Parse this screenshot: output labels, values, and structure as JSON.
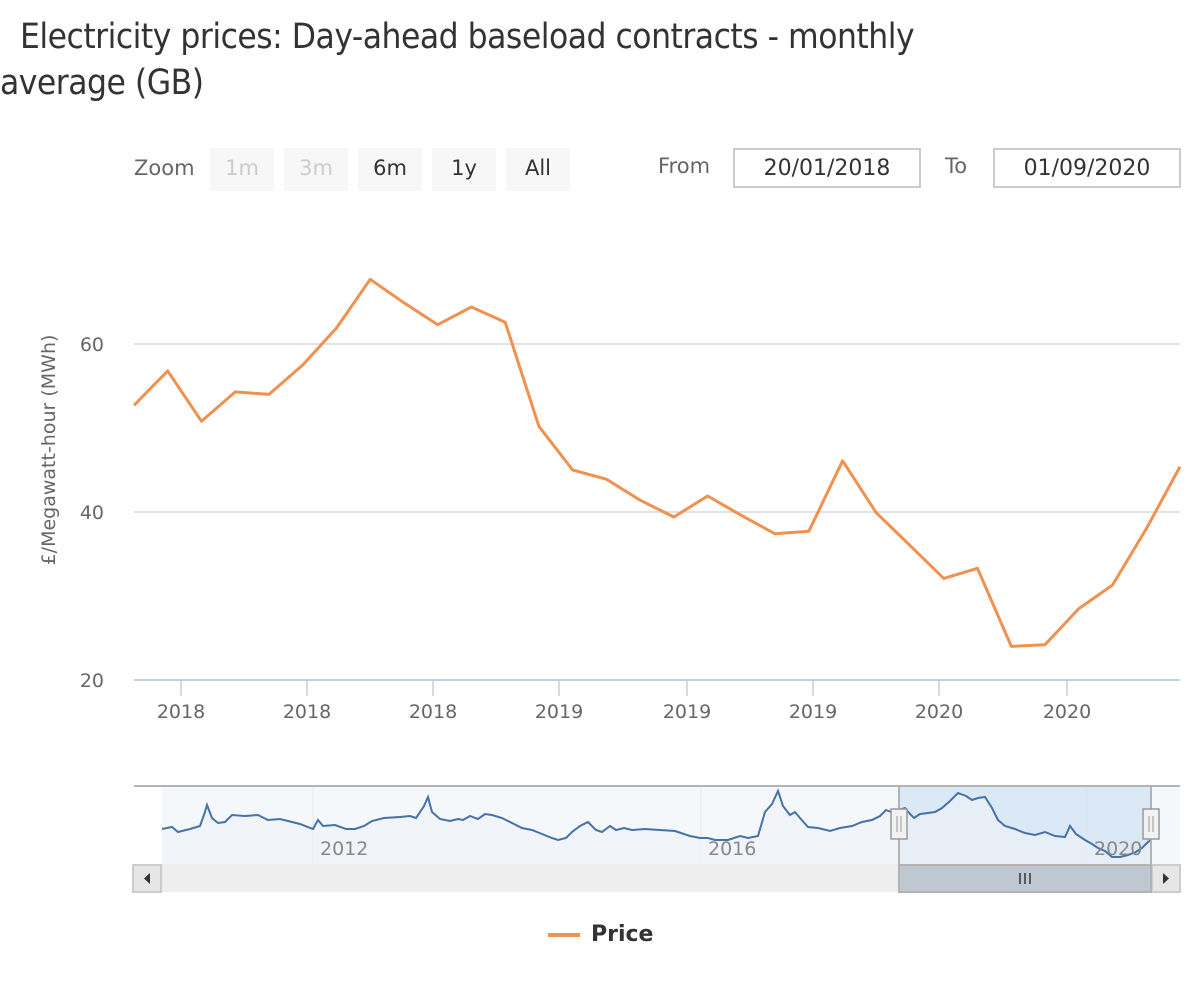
{
  "title": {
    "line1": "Electricity prices: Day-ahead baseload contracts - monthly",
    "line2": "average (GB)"
  },
  "range_selector": {
    "zoom_label": "Zoom",
    "buttons": [
      {
        "label": "1m",
        "enabled": false
      },
      {
        "label": "3m",
        "enabled": false
      },
      {
        "label": "6m",
        "enabled": true
      },
      {
        "label": "1y",
        "enabled": true
      },
      {
        "label": "All",
        "enabled": true
      }
    ],
    "from_label": "From",
    "from_value": "20/01/2018",
    "to_label": "To",
    "to_value": "01/09/2020"
  },
  "colors": {
    "series": "#f0914f",
    "navigator_series": "#4572a7",
    "navigator_mask": "#d6e5f5",
    "grid": "#d8d8d8",
    "axis": "#c0d0e0"
  },
  "legend": {
    "items": [
      {
        "label": "Price",
        "icon": "line-swatch-icon"
      }
    ]
  },
  "navigator": {
    "x_labels": [
      "2012",
      "2016",
      "2020"
    ],
    "scroll_left_icon": "triangle-left-icon",
    "scroll_right_icon": "triangle-right-icon",
    "grip_icon": "grip-lines-icon"
  },
  "chart_data": {
    "type": "line",
    "title": "Electricity prices: Day-ahead baseload contracts - monthly average (GB)",
    "xlabel": "",
    "ylabel": "£/Megawatt-hour (MWh)",
    "ylim": [
      20,
      70
    ],
    "yticks": [
      20,
      40,
      60
    ],
    "xtick_labels": [
      "2018",
      "2018",
      "2018",
      "2019",
      "2019",
      "2019",
      "2020",
      "2020"
    ],
    "grid": true,
    "legend_position": "bottom-center",
    "series": [
      {
        "name": "Price",
        "values": [
          52.7,
          56.8,
          50.8,
          54.3,
          54.0,
          57.5,
          61.9,
          67.7,
          64.9,
          62.3,
          64.4,
          62.6,
          50.2,
          45.0,
          43.9,
          41.4,
          39.4,
          41.9,
          39.6,
          37.4,
          37.7,
          46.1,
          39.9,
          36.0,
          32.1,
          33.3,
          24.0,
          24.2,
          28.5,
          31.3,
          38.0,
          45.4
        ]
      }
    ]
  }
}
